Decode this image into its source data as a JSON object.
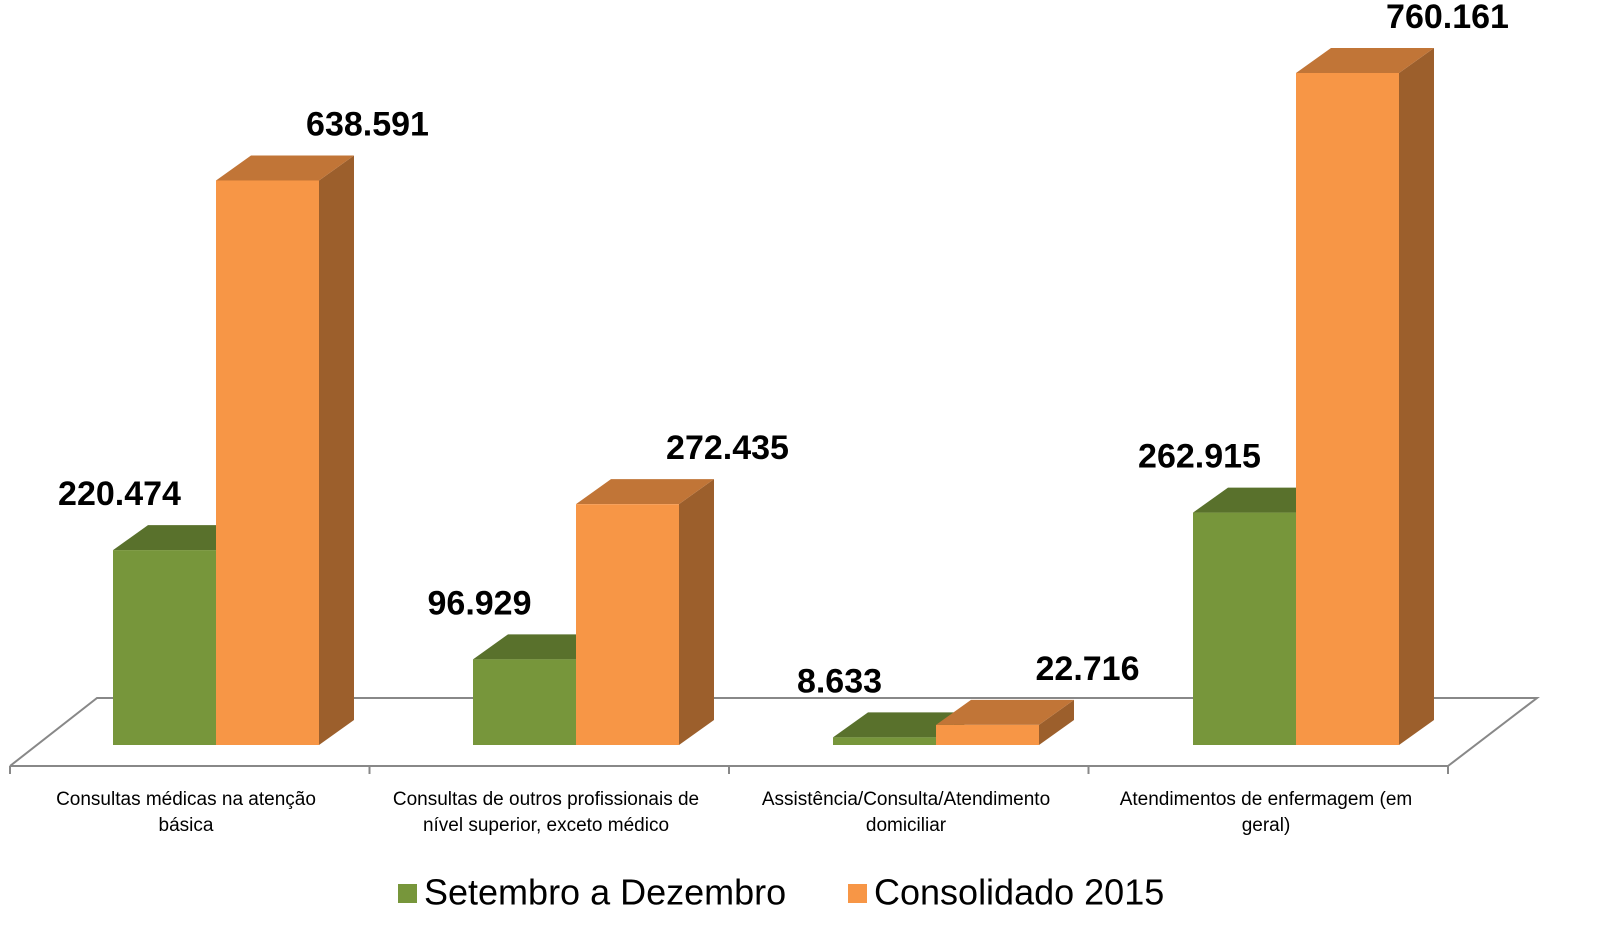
{
  "chart_data": {
    "type": "bar3d",
    "categories": [
      "Consultas médicas na atenção básica",
      "Consultas de outros profissionais de nível superior, exceto médico",
      "Assistência/Consulta/Atendimento domiciliar",
      "Atendimentos de enfermagem (em geral)"
    ],
    "series": [
      {
        "name": "Setembro a Dezembro",
        "color": "#77963b",
        "values": [
          220474,
          96929,
          8633,
          262915
        ],
        "value_labels": [
          "220.474",
          "96.929",
          "8.633",
          "262.915"
        ]
      },
      {
        "name": "Consolidado 2015",
        "color": "#f79646",
        "values": [
          638591,
          272435,
          22716,
          760161
        ],
        "value_labels": [
          "638.591",
          "272.435",
          "22.716",
          "760.161"
        ]
      }
    ]
  }
}
